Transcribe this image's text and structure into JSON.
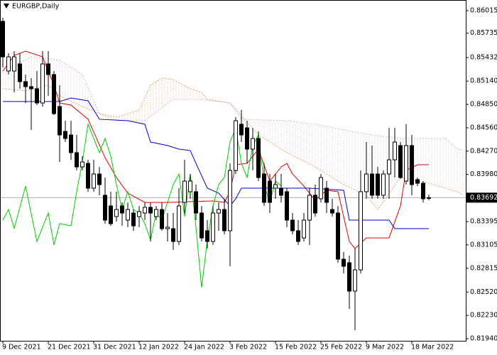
{
  "chart_data": {
    "type": "candlestick",
    "title": "EURGBP,Daily",
    "categories": [
      "9 Dec 2021",
      null,
      null,
      null,
      null,
      null,
      null,
      null,
      "21 Dec 2021",
      null,
      null,
      null,
      null,
      null,
      null,
      null,
      "31 Dec 2021",
      null,
      null,
      null,
      null,
      null,
      null,
      null,
      "12 Jan 2022",
      null,
      null,
      null,
      null,
      null,
      null,
      null,
      "24 Jan 2022",
      null,
      null,
      null,
      null,
      null,
      null,
      null,
      "3 Feb 2022",
      null,
      null,
      null,
      null,
      null,
      null,
      null,
      "15 Feb 2022",
      null,
      null,
      null,
      null,
      null,
      null,
      null,
      "25 Feb 2022",
      null,
      null,
      null,
      null,
      null,
      null,
      null,
      "9 Mar 2022",
      null,
      null,
      null,
      null,
      null,
      null,
      null,
      "18 Mar 2022",
      null,
      null,
      null
    ],
    "open": [
      0.85882,
      0.85265,
      0.85265,
      0.85353,
      0.85133,
      0.85071,
      0.85045,
      0.84868,
      0.85353,
      0.85221,
      0.84824,
      0.84515,
      0.84471,
      0.84251,
      0.84074,
      0.84118,
      0.8381,
      0.83986,
      0.83722,
      0.83589,
      0.83457,
      0.83589,
      0.83413,
      0.83501,
      0.83457,
      0.83501,
      0.83572,
      0.83457,
      0.83545,
      0.83307,
      0.83307,
      0.83148,
      0.83633,
      0.83766,
      0.83766,
      0.83501,
      0.83281,
      0.83148,
      0.83501,
      0.83545,
      0.83281,
      0.8403,
      0.84604,
      0.84559,
      0.84295,
      0.84427,
      0.83986,
      0.83898,
      0.8381,
      0.8381,
      0.83766,
      0.83413,
      0.83281,
      0.83192,
      0.83413,
      0.83722,
      0.83678,
      0.8381,
      0.83545,
      0.83501,
      0.82928,
      0.82884,
      0.82531,
      0.82795,
      0.83766,
      0.83986,
      0.83986,
      0.83722,
      0.83986,
      0.84162,
      0.84339,
      0.83898,
      0.84339,
      0.83916,
      0.83871,
      0.83686
    ],
    "high": [
      0.85926,
      0.85486,
      0.85512,
      0.85486,
      0.85221,
      0.85177,
      0.85265,
      0.85512,
      0.85512,
      0.85265,
      0.85089,
      0.84648,
      0.84648,
      0.84471,
      0.84207,
      0.84162,
      0.84162,
      0.84074,
      0.83942,
      0.83766,
      0.83766,
      0.83633,
      0.83633,
      0.83545,
      0.83589,
      0.83633,
      0.83633,
      0.83589,
      0.83633,
      0.83501,
      0.83501,
      0.8381,
      0.84162,
      0.83986,
      0.83854,
      0.83589,
      0.83413,
      0.83589,
      0.83633,
      0.83678,
      0.84118,
      0.84692,
      0.8478,
      0.84648,
      0.84559,
      0.84515,
      0.84118,
      0.83986,
      0.83986,
      0.83986,
      0.8381,
      0.83501,
      0.83413,
      0.83501,
      0.8381,
      0.83854,
      0.83986,
      0.83898,
      0.83678,
      0.83589,
      0.83016,
      0.82972,
      0.8306,
      0.8403,
      0.84383,
      0.84339,
      0.84074,
      0.8403,
      0.84559,
      0.84559,
      0.84383,
      0.84604,
      0.84471,
      0.83942,
      0.83898,
      0.8373
    ],
    "low": [
      0.85309,
      0.85221,
      0.85,
      0.85045,
      0.84868,
      0.84533,
      0.84842,
      0.84824,
      0.84956,
      0.84718,
      0.84136,
      0.84383,
      0.84162,
      0.8403,
      0.8403,
      0.83766,
      0.83766,
      0.83722,
      0.83369,
      0.83342,
      0.83395,
      0.83342,
      0.83325,
      0.83281,
      0.83325,
      0.83413,
      0.83148,
      0.83413,
      0.83281,
      0.83148,
      0.83042,
      0.83104,
      0.83501,
      0.83678,
      0.83413,
      0.83148,
      0.8306,
      0.83104,
      0.83281,
      0.83236,
      0.8284,
      0.83986,
      0.84383,
      0.84118,
      0.8403,
      0.83898,
      0.83589,
      0.83501,
      0.83678,
      0.83633,
      0.83325,
      0.83236,
      0.83104,
      0.83148,
      0.83104,
      0.83457,
      0.83633,
      0.83501,
      0.83457,
      0.82884,
      0.82751,
      0.8231,
      0.82046,
      0.82751,
      0.83678,
      0.83678,
      0.83678,
      0.83678,
      0.83678,
      0.83942,
      0.83924,
      0.83854,
      0.83722,
      0.83836,
      0.83633,
      0.8366
    ],
    "close": [
      0.85441,
      0.85441,
      0.85441,
      0.85133,
      0.85071,
      0.85045,
      0.84868,
      0.85353,
      0.85221,
      0.84736,
      0.84471,
      0.84427,
      0.84251,
      0.84074,
      0.84136,
      0.8381,
      0.83986,
      0.83854,
      0.83413,
      0.83369,
      0.83545,
      0.83501,
      0.83545,
      0.83342,
      0.83519,
      0.83572,
      0.83501,
      0.83545,
      0.83307,
      0.83325,
      0.83148,
      0.83589,
      0.83898,
      0.83898,
      0.83501,
      0.83192,
      0.83148,
      0.83501,
      0.83545,
      0.83281,
      0.8403,
      0.84648,
      0.84471,
      0.84295,
      0.84427,
      0.83942,
      0.83633,
      0.83633,
      0.83854,
      0.83722,
      0.83413,
      0.83281,
      0.83148,
      0.83413,
      0.83722,
      0.83501,
      0.83942,
      0.83633,
      0.83501,
      0.82928,
      0.8284,
      0.82531,
      0.82795,
      0.83766,
      0.83986,
      0.83722,
      0.83722,
      0.83986,
      0.84162,
      0.84383,
      0.83942,
      0.84339,
      0.83854,
      0.83871,
      0.83678,
      0.83692
    ],
    "up_color": "#ffffff",
    "down_color": "#000000",
    "last_price": 0.83692,
    "ylim": [
      0.81914,
      0.86147
    ],
    "yticks": [
      0.86015,
      0.85735,
      0.85432,
      {
        "value": 0.8514,
        "label": "0.85140"
      },
      {
        "value": 0.8485,
        "label": "0.84850"
      },
      {
        "value": 0.8456,
        "label": "0.84560"
      },
      {
        "value": 0.8427,
        "label": "0.84270"
      },
      {
        "value": 0.8398,
        "label": "0.83980"
      },
      0.83395,
      0.83105,
      0.82815,
      {
        "value": 0.8252,
        "label": "0.82520"
      },
      {
        "value": 0.8223,
        "label": "0.82230"
      },
      {
        "value": 0.8194,
        "label": "0.81940"
      }
    ],
    "cloud_hatch": true,
    "lines": [
      {
        "color": "#f4a460",
        "style": "dotted",
        "x": [
          0,
          4,
          8,
          10,
          14,
          17,
          20,
          24,
          26,
          28,
          30,
          33,
          35,
          36,
          40,
          45,
          50,
          55,
          60,
          64,
          66,
          70,
          75,
          80,
          81
        ],
        "values": [
          0.85045,
          0.85018,
          0.85089,
          0.84956,
          0.84824,
          0.84736,
          0.84692,
          0.8478,
          0.85089,
          0.85177,
          0.85159,
          0.85045,
          0.85,
          0.84912,
          0.84868,
          0.84471,
          0.84251,
          0.84074,
          0.83854,
          0.83722,
          0.83545,
          0.83942,
          0.83871,
          0.83766,
          0.83722
        ]
      },
      {
        "color": "#d8b4d8",
        "style": "dotted",
        "x": [
          0,
          5,
          10,
          14,
          17,
          20,
          25,
          30,
          35,
          40,
          42,
          50,
          55,
          60,
          65,
          70,
          78,
          80,
          81
        ],
        "values": [
          0.85265,
          0.85441,
          0.85397,
          0.85221,
          0.84736,
          0.84648,
          0.84648,
          0.84912,
          0.84912,
          0.84868,
          0.84666,
          0.84648,
          0.84604,
          0.84533,
          0.84471,
          0.84427,
          0.84427,
          0.84295,
          0.84277
        ]
      },
      {
        "color": "#e00000",
        "style": "solid",
        "x": [
          0,
          2,
          4,
          7,
          9,
          10,
          12,
          15,
          18,
          20,
          22,
          25,
          29,
          37,
          39,
          40,
          41,
          43,
          45,
          47,
          49,
          50,
          51,
          53,
          55,
          57,
          59,
          61,
          62,
          64,
          68,
          70,
          71,
          73,
          75
        ],
        "values": [
          0.85265,
          0.85459,
          0.85512,
          0.85441,
          0.85089,
          0.84868,
          0.84842,
          0.84666,
          0.84189,
          0.83942,
          0.83748,
          0.83633,
          0.83633,
          0.83651,
          0.83633,
          0.83766,
          0.84101,
          0.84118,
          0.84295,
          0.83898,
          0.84074,
          0.84118,
          0.83986,
          0.83836,
          0.8366,
          0.83784,
          0.83766,
          0.83148,
          0.8306,
          0.83192,
          0.83192,
          0.83589,
          0.8403,
          0.84101,
          0.84101
        ]
      },
      {
        "color": "#0000cc",
        "style": "solid",
        "x": [
          0,
          10,
          12,
          15,
          17,
          22,
          25,
          26,
          29,
          31,
          33,
          34,
          36,
          38,
          40,
          41,
          42,
          54,
          60,
          61,
          68,
          69,
          75
        ],
        "values": [
          0.84886,
          0.84886,
          0.8493,
          0.84895,
          0.84666,
          0.84648,
          0.84604,
          0.84383,
          0.84339,
          0.84295,
          0.84277,
          0.84118,
          0.8381,
          0.83748,
          0.83589,
          0.83678,
          0.8381,
          0.8381,
          0.83784,
          0.83413,
          0.83413,
          0.83307,
          0.83307
        ]
      },
      {
        "color": "#00cc00",
        "style": "solid",
        "x": [
          0,
          1,
          2,
          4,
          6,
          8,
          9,
          10,
          12,
          13,
          14,
          15,
          16,
          17,
          18,
          19,
          20,
          21,
          22,
          23,
          24,
          25,
          26,
          27,
          28,
          30,
          31,
          32,
          33,
          34,
          35,
          36,
          37,
          38,
          39,
          40,
          41,
          42,
          43,
          44,
          45,
          46,
          47,
          48,
          49
        ],
        "values": [
          0.83413,
          0.83545,
          0.8331,
          0.83836,
          0.83148,
          0.83501,
          0.83104,
          0.83369,
          0.83342,
          0.83766,
          0.84136,
          0.84604,
          0.84427,
          0.84251,
          0.84427,
          0.84207,
          0.83854,
          0.83545,
          0.83766,
          0.83545,
          0.83501,
          0.83369,
          0.83166,
          0.83501,
          0.83413,
          0.83854,
          0.83986,
          0.83457,
          0.83986,
          0.83325,
          0.82575,
          0.83166,
          0.83589,
          0.83854,
          0.83942,
          0.84383,
          0.84559,
          0.84118,
          0.83942,
          0.84339,
          0.84471,
          0.83854,
          0.83633,
          0.83898,
          0.83836
        ]
      }
    ]
  }
}
